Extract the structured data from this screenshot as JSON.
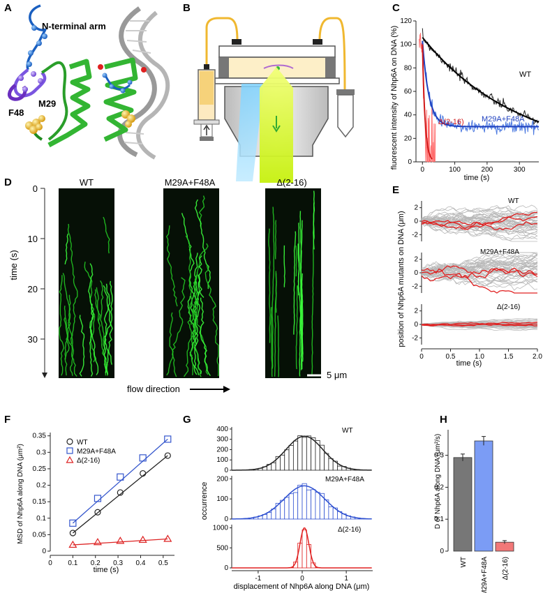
{
  "panel_labels": [
    "A",
    "B",
    "C",
    "D",
    "E",
    "F",
    "G",
    "H"
  ],
  "panelA": {
    "n_terminal_arm": "N-terminal arm",
    "m29": "M29",
    "f48": "F48"
  },
  "panelD": {
    "columns": [
      "WT",
      "M29A+F48A",
      "Δ(2-16)"
    ],
    "ylabel": "time (s)",
    "ticks": [
      "0",
      "10",
      "20",
      "30"
    ],
    "scalebar": "5 μm",
    "flow": "flow direction"
  },
  "chart_data": [
    {
      "id": "C",
      "type": "line",
      "xlabel": "time (s)",
      "ylabel": "fluorescent intensity of Nhp6A on DNA (%)",
      "xlim": [
        -20,
        360
      ],
      "ylim": [
        0,
        120
      ],
      "xticks": [
        0,
        100,
        200,
        300
      ],
      "yticks": [
        0,
        20,
        40,
        60,
        80,
        100,
        120
      ],
      "series": [
        {
          "name": "WT",
          "color": "#222222",
          "fit_color": "#000000",
          "tau": 300
        },
        {
          "name": "M29A+F48A",
          "color": "#4a78e0",
          "fit_color": "#1d3fbf",
          "tau": 20,
          "plateau": 30
        },
        {
          "name": "Δ(2-16)",
          "color": "#ff6b6b",
          "fit_color": "#d11a1a",
          "tau": 8
        }
      ]
    },
    {
      "id": "E",
      "type": "line",
      "xlabel": "time (s)",
      "ylabel": "position of Nhp6A mutants on DNA (μm)",
      "xlim": [
        0,
        2.0
      ],
      "xticks": [
        "0",
        "0.5",
        "1.0",
        "1.5",
        "2.0"
      ],
      "subplots": [
        {
          "name": "WT",
          "ylim": [
            -3,
            3
          ],
          "yticks": [
            -2,
            0,
            2
          ],
          "spread": 1.0
        },
        {
          "name": "M29A+F48A",
          "ylim": [
            -3,
            3
          ],
          "yticks": [
            -2,
            0,
            2
          ],
          "spread": 1.1
        },
        {
          "name": "Δ(2-16)",
          "ylim": [
            -3,
            3
          ],
          "yticks": [
            -2,
            0,
            2
          ],
          "spread": 0.25
        }
      ]
    },
    {
      "id": "F",
      "type": "scatter",
      "xlabel": "time (s)",
      "ylabel": "MSD of Nhp6A along DNA (μm²)",
      "xlim": [
        0,
        0.55
      ],
      "ylim": [
        0,
        0.36
      ],
      "xticks": [
        "0",
        "0.1",
        "0.2",
        "0.3",
        "0.4",
        "0.5"
      ],
      "yticks": [
        "0",
        "0.05",
        "0.1",
        "0.15",
        "0.2",
        "0.25",
        "0.3",
        "0.35"
      ],
      "x": [
        0.1,
        0.21,
        0.31,
        0.41,
        0.52
      ],
      "series": [
        {
          "name": "WT",
          "marker": "circle",
          "color": "#222222",
          "values": [
            0.055,
            0.118,
            0.178,
            0.236,
            0.29
          ]
        },
        {
          "name": "M29A+F48A",
          "marker": "square",
          "color": "#3355cc",
          "values": [
            0.085,
            0.16,
            0.225,
            0.283,
            0.34
          ]
        },
        {
          "name": "Δ(2-16)",
          "marker": "triangle",
          "color": "#dd2222",
          "values": [
            0.019,
            0.027,
            0.031,
            0.034,
            0.037
          ]
        }
      ]
    },
    {
      "id": "G",
      "type": "bar",
      "xlabel": "displacement of Nhp6A along DNA (μm)",
      "ylabel": "occurrence",
      "xlim": [
        -1.6,
        1.6
      ],
      "xticks": [
        "-1",
        "0",
        "1"
      ],
      "subplots": [
        {
          "name": "WT",
          "color": "#222222",
          "yticks": [
            "0",
            "100",
            "200",
            "300",
            "400"
          ],
          "ymax": 420,
          "peak": 330,
          "sigma": 0.42
        },
        {
          "name": "M29A+F48A",
          "color": "#2d4fd0",
          "yticks": [
            "0",
            "100",
            "200"
          ],
          "ymax": 215,
          "peak": 165,
          "sigma": 0.46
        },
        {
          "name": "Δ(2-16)",
          "color": "#e02020",
          "yticks": [
            "0",
            "500",
            "1000"
          ],
          "ymax": 1080,
          "peak": 1000,
          "sigma": 0.1
        }
      ]
    },
    {
      "id": "H",
      "type": "bar",
      "ylabel": "D of Nhp6A along DNA (μm²/s)",
      "ylim": [
        0,
        0.38
      ],
      "yticks": [
        "0",
        "0.1",
        "0.2",
        "0.3"
      ],
      "categories": [
        "WT",
        "M29A+F48A",
        "Δ(2-16)"
      ],
      "values": [
        0.293,
        0.345,
        0.028
      ],
      "errors": [
        0.011,
        0.014,
        0.005
      ],
      "colors": [
        "#777777",
        "#7b9cf5",
        "#f27878"
      ]
    }
  ]
}
